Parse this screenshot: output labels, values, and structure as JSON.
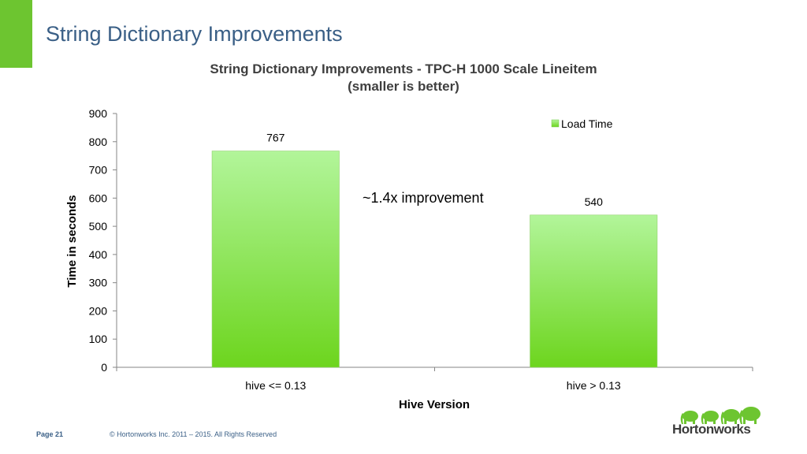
{
  "slide": {
    "title": "String Dictionary Improvements",
    "page_label": "Page 21",
    "copyright": "© Hortonworks Inc. 2011 – 2015. All Rights Reserved",
    "logo_text": "Hortonworks",
    "accent_color": "#6dc530"
  },
  "chart_data": {
    "type": "bar",
    "title": "String Dictionary Improvements - TPC-H 1000 Scale Lineitem",
    "subtitle": "(smaller is better)",
    "xlabel": "Hive Version",
    "ylabel": "Time in seconds",
    "categories": [
      "hive <= 0.13",
      "hive > 0.13"
    ],
    "series": [
      {
        "name": "Load Time",
        "values": [
          767,
          540
        ],
        "color_top": "#b2f59a",
        "color_bottom": "#6dd51e"
      }
    ],
    "data_labels": [
      "767",
      "540"
    ],
    "ylim": [
      0,
      900
    ],
    "yticks": [
      0,
      100,
      200,
      300,
      400,
      500,
      600,
      700,
      800,
      900
    ],
    "annotation": "~1.4x improvement",
    "legend_position": "top-right",
    "grid": false
  }
}
